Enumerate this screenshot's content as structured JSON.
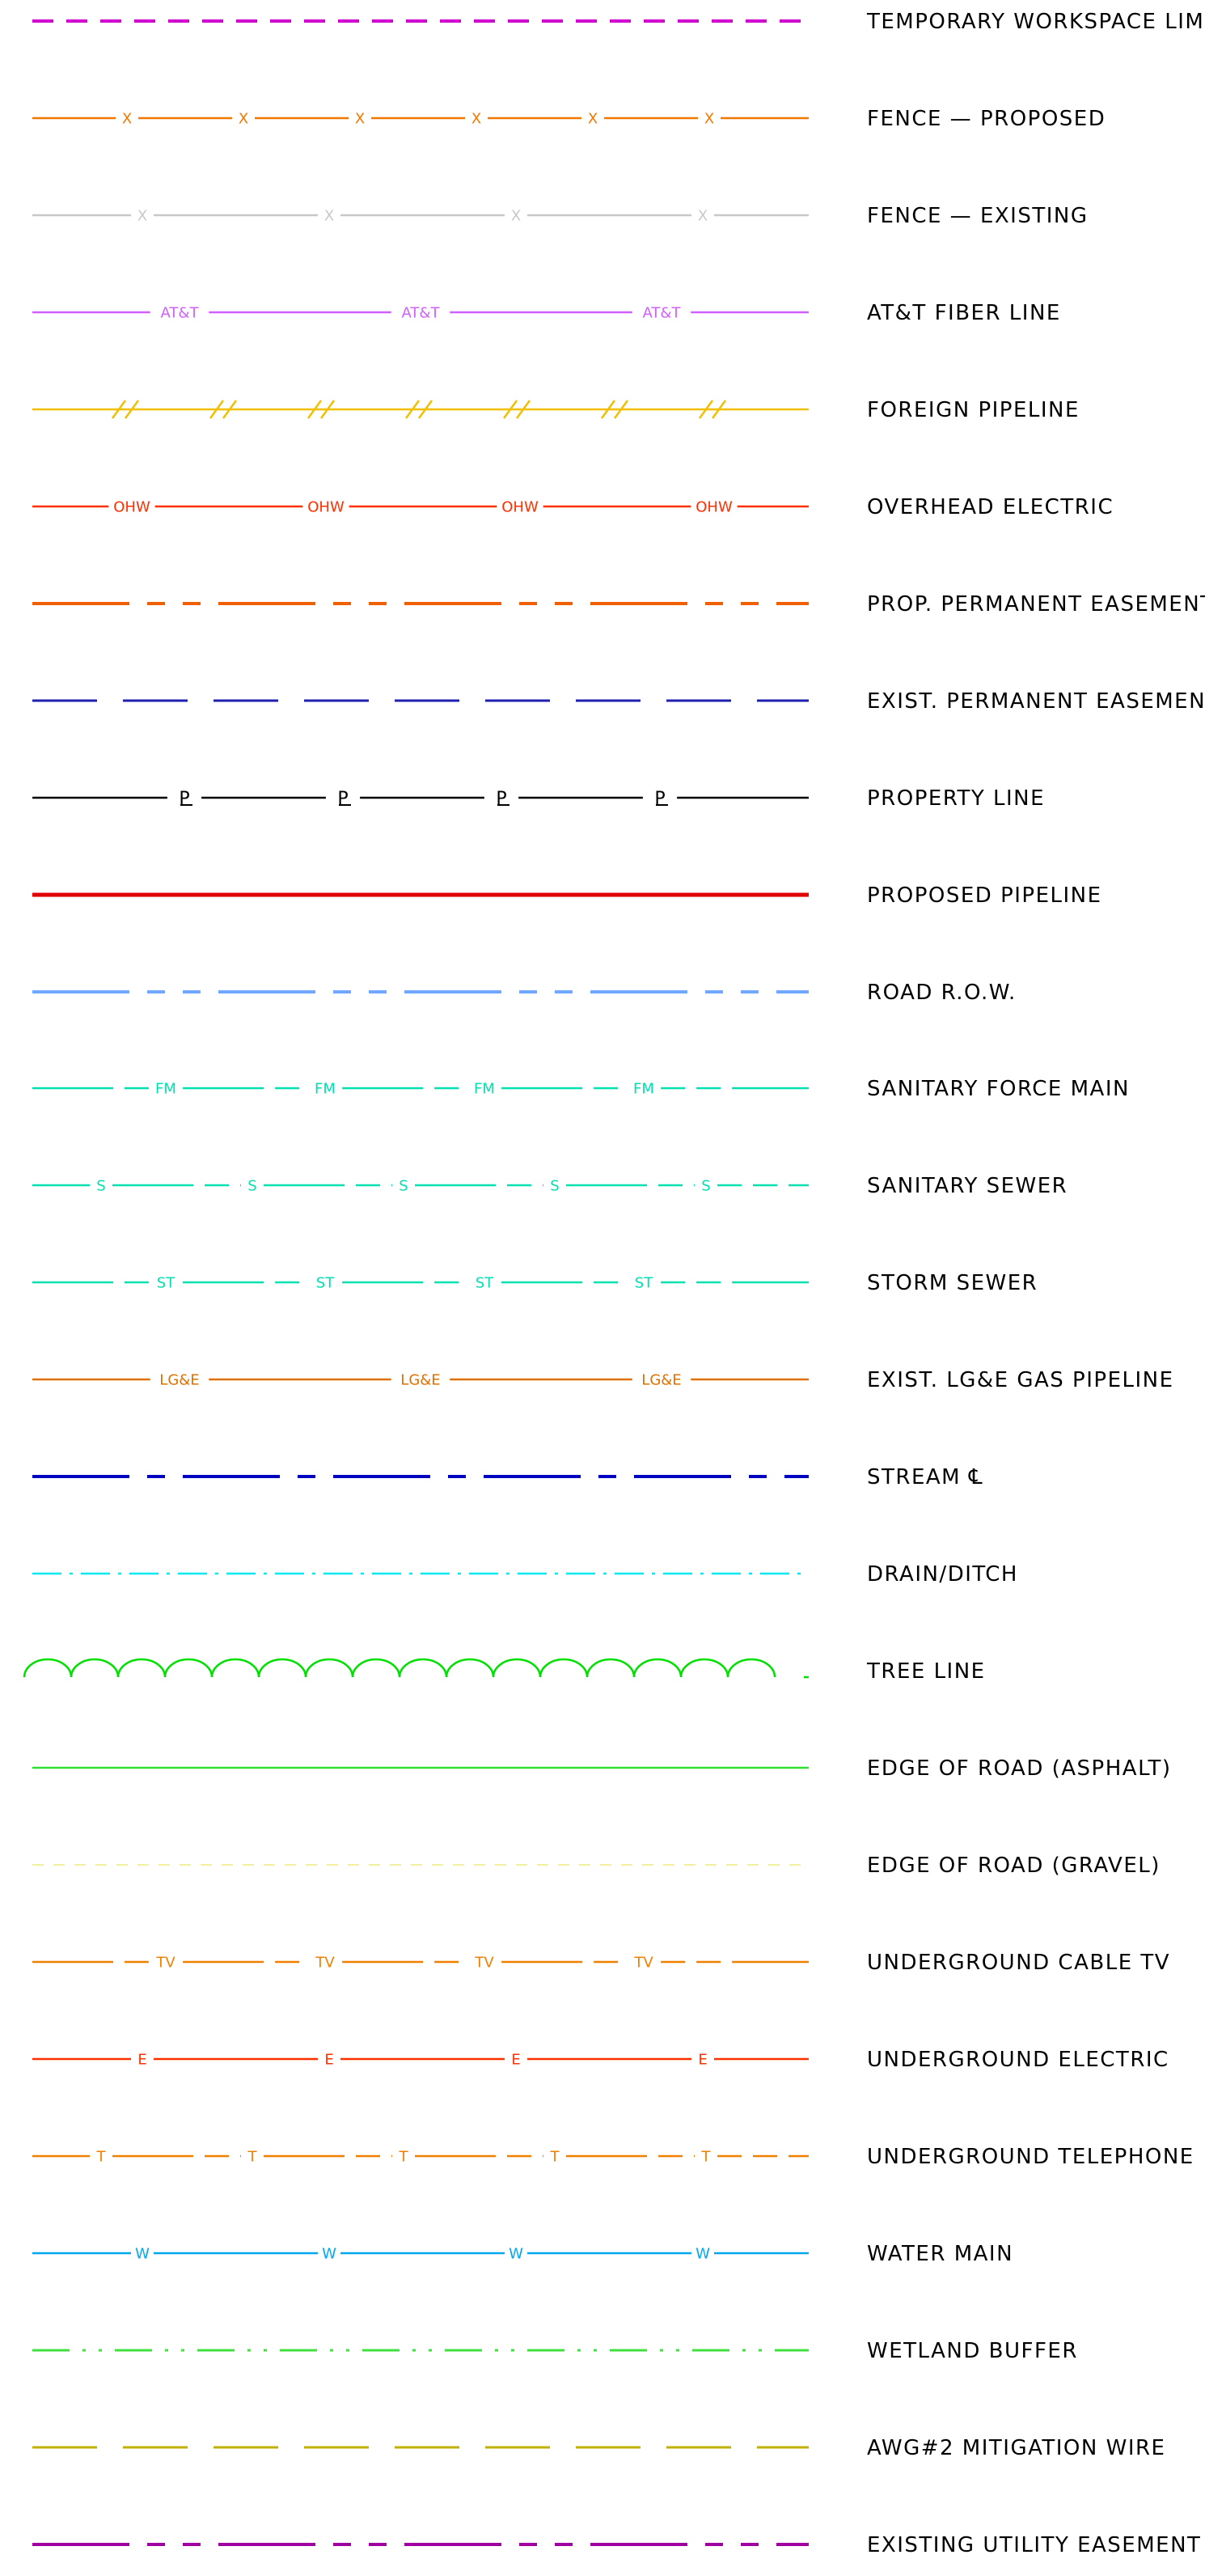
{
  "legend": {
    "items": [
      {
        "label": "TEMPORARY WORKSPACE LIMIT",
        "color": "#d000d0",
        "style": "dash-long",
        "marker": ""
      },
      {
        "label": "FENCE — PROPOSED",
        "color": "#f07800",
        "style": "marker",
        "marker": "X",
        "marker_count": 6
      },
      {
        "label": "FENCE — EXISTING",
        "color": "#c8c8c8",
        "style": "marker",
        "marker": "X",
        "marker_count": 4
      },
      {
        "label": "AT&T FIBER LINE",
        "color": "#d060ff",
        "style": "marker",
        "marker": "AT&T",
        "marker_count": 3
      },
      {
        "label": "FOREIGN PIPELINE",
        "color": "#f0c000",
        "style": "slash",
        "marker": "//",
        "marker_count": 7
      },
      {
        "label": "OVERHEAD ELECTRIC",
        "color": "#ff3000",
        "style": "marker",
        "marker": "OHW",
        "marker_count": 4
      },
      {
        "label": "PROP. PERMANENT EASEMENT",
        "color": "#f06000",
        "style": "long-short-short",
        "marker": ""
      },
      {
        "label": "EXIST. PERMANENT EASEMENT",
        "color": "#2020b0",
        "style": "dash-medium",
        "marker": ""
      },
      {
        "label": "PROPERTY LINE",
        "color": "#000000",
        "style": "marker",
        "marker": "PL",
        "marker_count": 4
      },
      {
        "label": "PROPOSED PIPELINE",
        "color": "#e00000",
        "style": "solid-thick",
        "marker": ""
      },
      {
        "label": "ROAD R.O.W.",
        "color": "#70a8ff",
        "style": "long-short-short",
        "marker": ""
      },
      {
        "label": "SANITARY FORCE MAIN",
        "color": "#00e0b0",
        "style": "marker-dashed",
        "marker": "FM",
        "marker_count": 4
      },
      {
        "label": "SANITARY SEWER",
        "color": "#00e0b0",
        "style": "marker-dashed",
        "marker": "S",
        "marker_count": 5
      },
      {
        "label": "STORM SEWER",
        "color": "#00e0b0",
        "style": "marker-dashed",
        "marker": "ST",
        "marker_count": 4
      },
      {
        "label": "EXIST. LG&E GAS PIPELINE",
        "color": "#e07000",
        "style": "marker",
        "marker": "LG&E",
        "marker_count": 3
      },
      {
        "label": "STREAM ℄",
        "color": "#0000c0",
        "style": "long-short",
        "marker": ""
      },
      {
        "label": "DRAIN/DITCH",
        "color": "#00e8f0",
        "style": "dash-dot",
        "marker": ""
      },
      {
        "label": "TREE LINE",
        "color": "#00e000",
        "style": "scallop",
        "marker": ""
      },
      {
        "label": "EDGE OF ROAD (ASPHALT)",
        "color": "#30e030",
        "style": "solid",
        "marker": ""
      },
      {
        "label": "EDGE OF ROAD (GRAVEL)",
        "color": "#f0f0a0",
        "style": "dash-small",
        "marker": ""
      },
      {
        "label": "UNDERGROUND CABLE TV",
        "color": "#f08000",
        "style": "marker-dashed",
        "marker": "TV",
        "marker_count": 4
      },
      {
        "label": "UNDERGROUND ELECTRIC",
        "color": "#ff3000",
        "style": "marker",
        "marker": "E",
        "marker_count": 4
      },
      {
        "label": "UNDERGROUND TELEPHONE",
        "color": "#f08000",
        "style": "marker-dashed",
        "marker": "T",
        "marker_count": 5
      },
      {
        "label": "WATER MAIN",
        "color": "#00a8f0",
        "style": "marker",
        "marker": "W",
        "marker_count": 4
      },
      {
        "label": "WETLAND BUFFER",
        "color": "#40e040",
        "style": "dash-dot-dot",
        "marker": ""
      },
      {
        "label": "AWG#2 MITIGATION WIRE",
        "color": "#c0b000",
        "style": "dash-medium",
        "marker": ""
      },
      {
        "label": "EXISTING UTILITY EASEMENT",
        "color": "#a000a0",
        "style": "long-short-short",
        "marker": ""
      }
    ]
  }
}
